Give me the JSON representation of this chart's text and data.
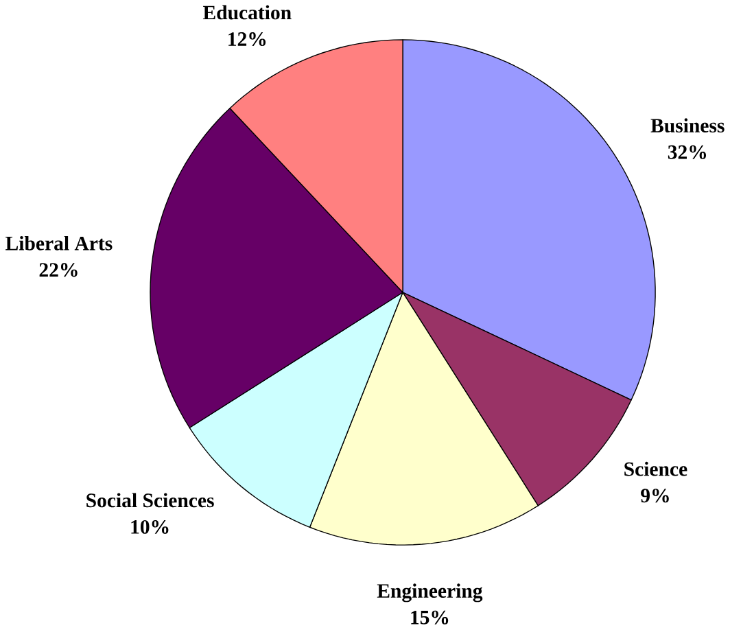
{
  "chart_data": {
    "type": "pie",
    "categories": [
      "Business",
      "Science",
      "Engineering",
      "Social Sciences",
      "Liberal Arts",
      "Education"
    ],
    "values": [
      32,
      9,
      15,
      10,
      22,
      12
    ],
    "value_labels": [
      "32%",
      "9%",
      "15%",
      "10%",
      "22%",
      "12%"
    ],
    "colors": [
      "#9999ff",
      "#993366",
      "#ffffcc",
      "#ccffff",
      "#660066",
      "#ff8080"
    ]
  }
}
